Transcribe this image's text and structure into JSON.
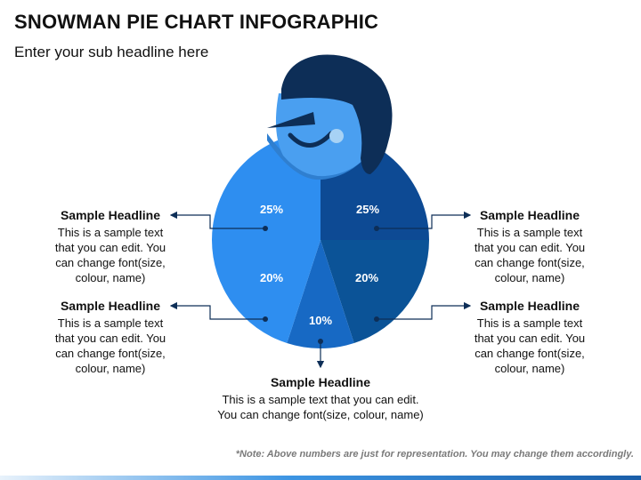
{
  "header": {
    "title": "SNOWMAN PIE CHART INFOGRAPHIC",
    "subtitle": "Enter your sub headline here"
  },
  "colors": {
    "hat": "#0d2e57",
    "face": "#4a9ff0",
    "face_shadow": "#2f7fd0",
    "nose": "#0d2e57",
    "mouth": "#0d2e57",
    "cheek": "#a7d2f5",
    "connector": "#0d2e57"
  },
  "chart_data": {
    "type": "pie",
    "slices": [
      {
        "label": "25%",
        "value": 25,
        "color": "#2e8ef0"
      },
      {
        "label": "25%",
        "value": 25,
        "color": "#0d4a94"
      },
      {
        "label": "20%",
        "value": 20,
        "color": "#0b5397"
      },
      {
        "label": "10%",
        "value": 10,
        "color": "#1769c4"
      },
      {
        "label": "20%",
        "value": 20,
        "color": "#2e8ef0"
      }
    ]
  },
  "callouts": [
    {
      "headline": "Sample Headline",
      "text": "This is a sample text\nthat you can edit. You\ncan change font(size,\ncolour, name)"
    },
    {
      "headline": "Sample Headline",
      "text": "This is a sample text\nthat you can edit. You\ncan change font(size,\ncolour, name)"
    },
    {
      "headline": "Sample Headline",
      "text": "This is a sample text\nthat you can edit. You\ncan change font(size,\ncolour, name)"
    },
    {
      "headline": "Sample Headline",
      "text": "This is a sample text\nthat you can edit. You\ncan change font(size,\ncolour, name)"
    },
    {
      "headline": "Sample Headline",
      "text": "This is a sample text that you can edit.\nYou can change font(size, colour, name)"
    }
  ],
  "note": "*Note: Above numbers are just for representation. You may change them accordingly."
}
